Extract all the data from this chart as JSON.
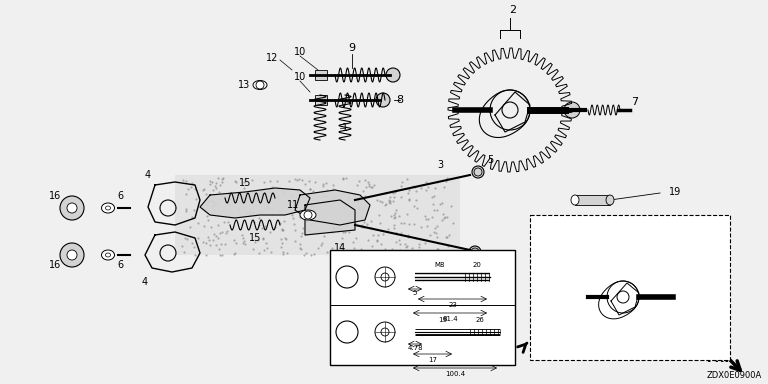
{
  "bg_color": "#f5f5f5",
  "fig_width": 7.68,
  "fig_height": 3.84,
  "dpi": 100,
  "code_label": "ZDX0E0900A"
}
